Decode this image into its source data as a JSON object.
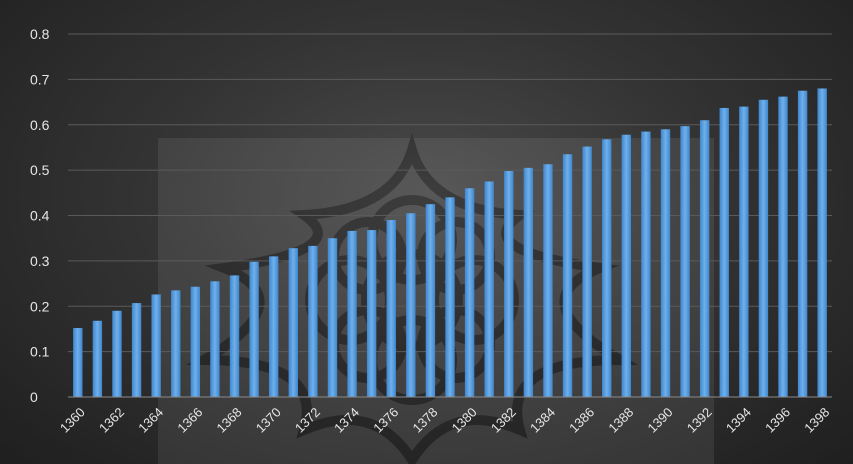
{
  "chart_data": {
    "type": "bar",
    "title": "",
    "xlabel": "",
    "ylabel": "",
    "ylim": [
      0,
      0.8
    ],
    "yticks": [
      "0",
      "0.1",
      "0.2",
      "0.3",
      "0.4",
      "0.5",
      "0.6",
      "0.7",
      "0.8"
    ],
    "xtick_labels": [
      "1360",
      "1362",
      "1364",
      "1366",
      "1368",
      "1370",
      "1372",
      "1374",
      "1376",
      "1378",
      "1380",
      "1382",
      "1384",
      "1386",
      "1388",
      "1390",
      "1392",
      "1394",
      "1396",
      "1398"
    ],
    "grid": true,
    "legend": "none",
    "bar_color": "#5b9bd5",
    "categories": [
      "1360",
      "1361",
      "1362",
      "1363",
      "1364",
      "1365",
      "1366",
      "1367",
      "1368",
      "1369",
      "1370",
      "1371",
      "1372",
      "1373",
      "1374",
      "1375",
      "1376",
      "1377",
      "1378",
      "1379",
      "1380",
      "1381",
      "1382",
      "1383",
      "1384",
      "1385",
      "1386",
      "1387",
      "1388",
      "1389",
      "1390",
      "1391",
      "1392",
      "1393",
      "1394",
      "1395",
      "1396",
      "1397",
      "1398"
    ],
    "values": [
      0.152,
      0.168,
      0.19,
      0.207,
      0.226,
      0.235,
      0.243,
      0.255,
      0.268,
      0.298,
      0.31,
      0.328,
      0.333,
      0.35,
      0.366,
      0.368,
      0.39,
      0.405,
      0.425,
      0.44,
      0.46,
      0.475,
      0.498,
      0.505,
      0.513,
      0.535,
      0.552,
      0.568,
      0.578,
      0.585,
      0.59,
      0.597,
      0.61,
      0.637,
      0.64,
      0.655,
      0.662,
      0.675,
      0.68
    ]
  }
}
